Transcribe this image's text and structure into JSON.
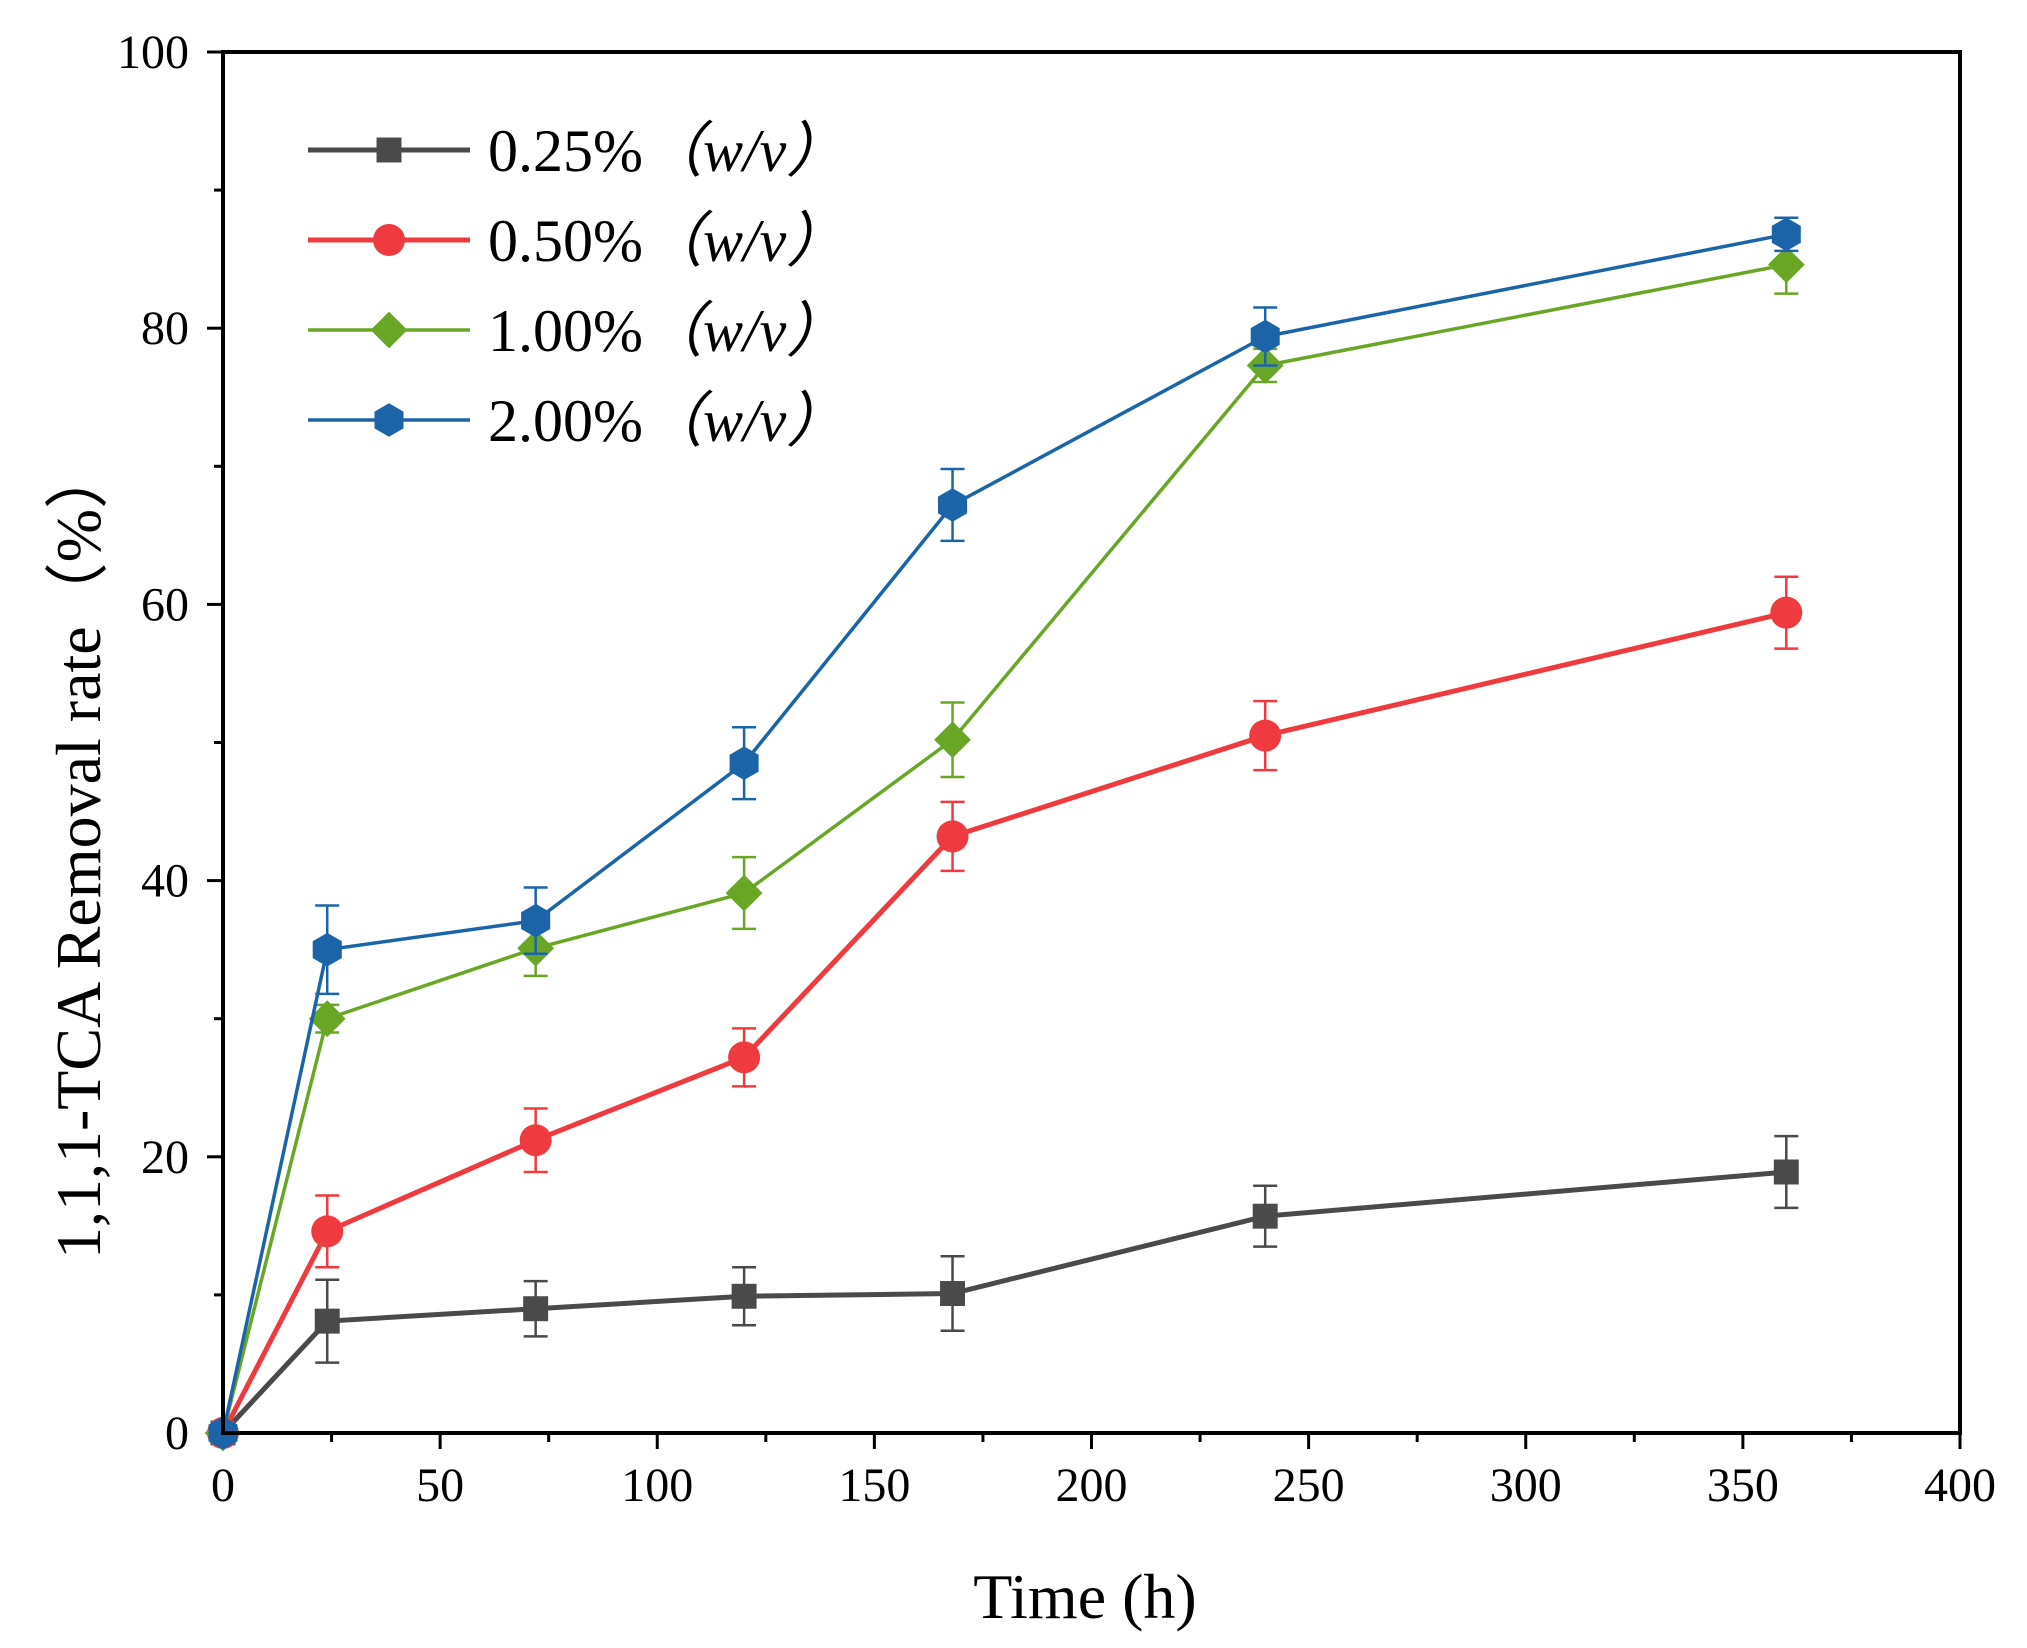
{
  "chart_data": {
    "type": "line",
    "xlabel": "Time (h)",
    "ylabel": "1,1,1-TCA Removal rate（%）",
    "xlim": [
      0,
      400
    ],
    "ylim": [
      0,
      100
    ],
    "xticks": [
      0,
      50,
      100,
      150,
      200,
      250,
      300,
      350,
      400
    ],
    "yticks": [
      0,
      20,
      40,
      60,
      80,
      100
    ],
    "x": [
      0,
      24,
      72,
      120,
      168,
      240,
      360
    ],
    "legend_position": "top-left",
    "series": [
      {
        "name": "0.25%",
        "unit": "（w/v）",
        "marker": "square",
        "color": "#4a4a4a",
        "values": [
          0,
          8.1,
          9.0,
          9.9,
          10.1,
          15.7,
          18.9
        ],
        "errors": [
          0,
          3.0,
          2.0,
          2.1,
          2.7,
          2.2,
          2.6
        ]
      },
      {
        "name": "0.50%",
        "unit": "（w/v）",
        "marker": "circle",
        "color": "#ef3a3f",
        "values": [
          0,
          14.6,
          21.2,
          27.2,
          43.2,
          50.5,
          59.4
        ],
        "errors": [
          0,
          2.6,
          2.3,
          2.1,
          2.5,
          2.5,
          2.6
        ]
      },
      {
        "name": "1.00%",
        "unit": "（w/v）",
        "marker": "diamond",
        "color": "#6aa626",
        "values": [
          0,
          30.0,
          35.1,
          39.1,
          50.2,
          77.3,
          84.6
        ],
        "errors": [
          0,
          1.0,
          2.0,
          2.6,
          2.7,
          1.2,
          2.1
        ]
      },
      {
        "name": "2.00%",
        "unit": "（w/v）",
        "marker": "hexagon",
        "color": "#1b64a8",
        "values": [
          0,
          35.0,
          37.1,
          48.5,
          67.2,
          79.4,
          86.8
        ],
        "errors": [
          0,
          3.2,
          2.4,
          2.6,
          2.6,
          2.1,
          1.2
        ]
      }
    ]
  }
}
